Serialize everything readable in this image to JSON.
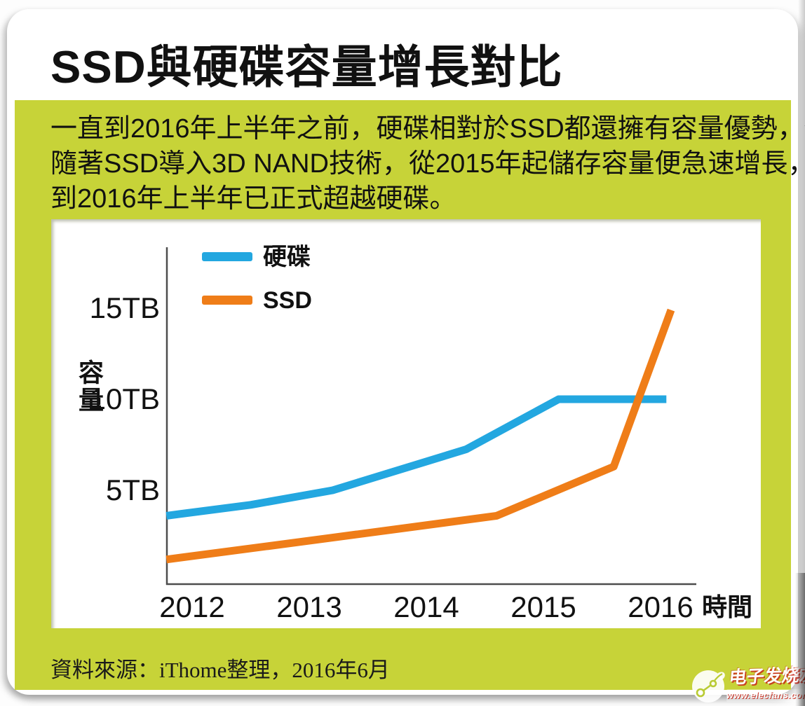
{
  "page": {
    "title": "SSD與硬碟容量增長對比",
    "intro": {
      "lines": [
        "一直到2016年上半年之前，硬碟相對於SSD都還擁有容量優勢，但",
        "隨著SSD導入3D NAND技術，從2015年起儲存容量便急速增長，",
        "到2016年上半年已正式超越硬碟。"
      ]
    },
    "source": "資料來源：iThome整理，2016年6月",
    "colors": {
      "green_background": "#c7d338",
      "hdd_blue": "#23a7e0",
      "ssd_orange": "#ef7d18",
      "axis_gray": "#4d4d4d"
    }
  },
  "watermark": {
    "brand": "电子发烧友",
    "url": "www.elecfans.com",
    "logo_icon": "elecfans-leaf-circuit-logo",
    "accent_red": "#c82819"
  },
  "chart_data": {
    "type": "line",
    "title": "",
    "xlabel": "時間",
    "ylabel": "容量",
    "unit": "TB",
    "grid": false,
    "legend_position": "top-left",
    "xlim": [
      2011.78,
      2016.35
    ],
    "ylim": [
      0,
      18.3
    ],
    "x_ticks": [
      {
        "value": 2012,
        "label": "2012"
      },
      {
        "value": 2013,
        "label": "2013"
      },
      {
        "value": 2014,
        "label": "2014"
      },
      {
        "value": 2015,
        "label": "2015"
      },
      {
        "value": 2016,
        "label": "2016"
      }
    ],
    "y_ticks": [
      {
        "value": 5,
        "label": "5TB"
      },
      {
        "value": 10,
        "label": "10TB"
      },
      {
        "value": 15,
        "label": "15TB"
      }
    ],
    "series": [
      {
        "name": "硬碟",
        "color": "#23a7e0",
        "points": [
          [
            2011.78,
            3.6
          ],
          [
            2012.5,
            4.2
          ],
          [
            2013.2,
            5.0
          ],
          [
            2014.34,
            7.25
          ],
          [
            2015.13,
            10.0
          ],
          [
            2016.05,
            10.0
          ]
        ]
      },
      {
        "name": "SSD",
        "color": "#ef7d18",
        "points": [
          [
            2011.78,
            1.2
          ],
          [
            2013.2,
            2.4
          ],
          [
            2014.6,
            3.6
          ],
          [
            2015.6,
            6.3
          ],
          [
            2016.09,
            14.9
          ]
        ]
      }
    ]
  }
}
